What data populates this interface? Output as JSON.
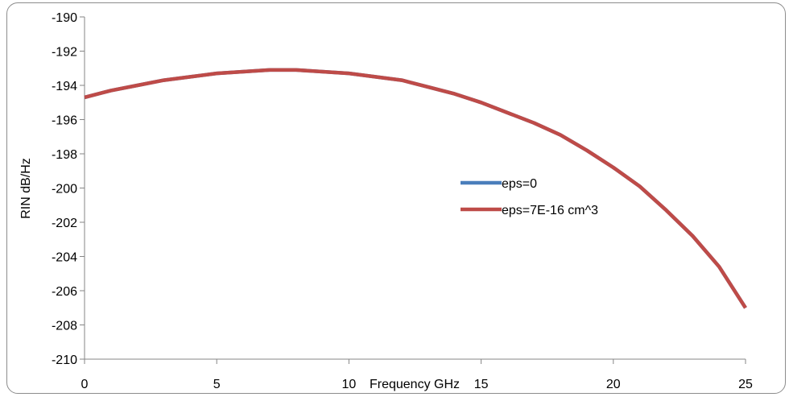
{
  "chart_data": {
    "type": "line",
    "title": "",
    "xlabel": "Frequency GHz",
    "ylabel": "RIN dB/Hz",
    "xlim": [
      0,
      25
    ],
    "ylim": [
      -210,
      -190
    ],
    "xticks": [
      0,
      5,
      10,
      15,
      20,
      25
    ],
    "yticks": [
      -210,
      -208,
      -206,
      -204,
      -202,
      -200,
      -198,
      -196,
      -194,
      -192,
      -190
    ],
    "xtick_labels": [
      "0",
      "5",
      "10",
      "15",
      "20",
      "25"
    ],
    "ytick_labels": [
      "-210",
      "-208",
      "-206",
      "-204",
      "-202",
      "-200",
      "-198",
      "-196",
      "-194",
      "-192",
      "-190"
    ],
    "grid": false,
    "legend_position": "right",
    "series": [
      {
        "name": "eps=0",
        "color": "#4a7ebb",
        "x": [
          0,
          1,
          2,
          3,
          4,
          5,
          6,
          7,
          8,
          9,
          10,
          11,
          12,
          13,
          14,
          15,
          16,
          17,
          18,
          19,
          20,
          21,
          22,
          23,
          24,
          25
        ],
        "y": [
          -194.7,
          -194.3,
          -194.0,
          -193.7,
          -193.5,
          -193.3,
          -193.2,
          -193.1,
          -193.1,
          -193.2,
          -193.3,
          -193.5,
          -193.7,
          -194.1,
          -194.5,
          -195.0,
          -195.6,
          -196.2,
          -196.9,
          -197.8,
          -198.8,
          -199.9,
          -201.3,
          -202.8,
          -204.6,
          -207.0
        ]
      },
      {
        "name": "eps=7E-16 cm^3",
        "color": "#be4b48",
        "x": [
          0,
          1,
          2,
          3,
          4,
          5,
          6,
          7,
          8,
          9,
          10,
          11,
          12,
          13,
          14,
          15,
          16,
          17,
          18,
          19,
          20,
          21,
          22,
          23,
          24,
          25
        ],
        "y": [
          -194.7,
          -194.3,
          -194.0,
          -193.7,
          -193.5,
          -193.3,
          -193.2,
          -193.1,
          -193.1,
          -193.2,
          -193.3,
          -193.5,
          -193.7,
          -194.1,
          -194.5,
          -195.0,
          -195.6,
          -196.2,
          -196.9,
          -197.8,
          -198.8,
          -199.9,
          -201.3,
          -202.8,
          -204.6,
          -207.0
        ]
      }
    ]
  }
}
